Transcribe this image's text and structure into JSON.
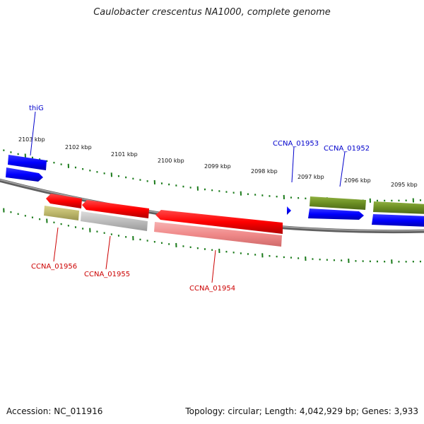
{
  "title": "Caulobacter crescentus NA1000, complete genome",
  "accession": "Accession: NC_011916",
  "summary": "Topology: circular; Length: 4,042,929 bp; Genes: 3,933",
  "scale_labels": [
    "2103 kbp",
    "2102 kbp",
    "2101 kbp",
    "2100 kbp",
    "2099 kbp",
    "2098 kbp",
    "2097 kbp",
    "2096 kbp",
    "2095 kbp"
  ],
  "genes": [
    {
      "id": "thiG",
      "label": "thiG",
      "color": "#0000cc"
    },
    {
      "id": "ccna01953",
      "label": "CCNA_01953",
      "color": "#0000cc"
    },
    {
      "id": "ccna01952",
      "label": "CCNA_01952",
      "color": "#0000cc"
    },
    {
      "id": "ccna01956",
      "label": "CCNA_01956",
      "color": "#cc0000"
    },
    {
      "id": "ccna01955",
      "label": "CCNA_01955",
      "color": "#cc0000"
    },
    {
      "id": "ccna01954",
      "label": "CCNA_01954",
      "color": "#cc0000"
    }
  ],
  "colors": {
    "forward_gene": "#0000ff",
    "reverse_gene": "#ff0000",
    "reverse_gene_light": "#f08a8a",
    "cog_olive": "#6b8e23",
    "cog_khaki": "#bdb76b",
    "cog_gray": "#b4b4b4",
    "backbone": "#808080",
    "ticks": "#1a7a1a"
  }
}
